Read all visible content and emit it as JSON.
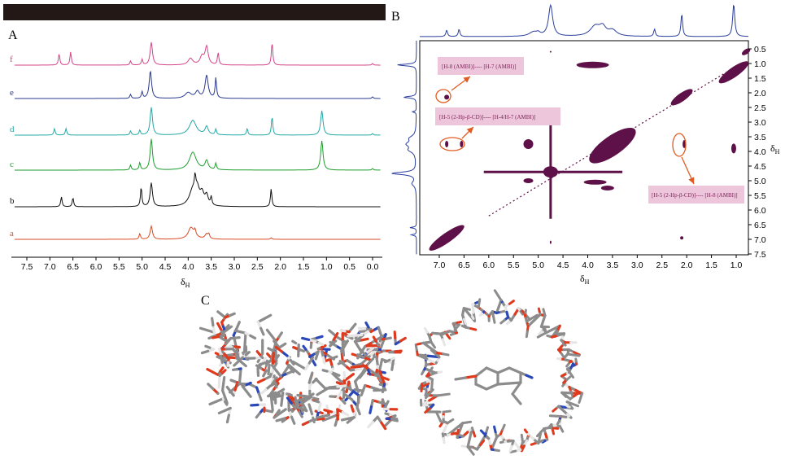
{
  "figure": {
    "panel_labels": {
      "a": "A",
      "b": "B",
      "c": "C"
    },
    "panel_a": {
      "xaxis": {
        "label": "δ",
        "label_sub": "H",
        "ticks": [
          "7.5",
          "7.0",
          "6.5",
          "6.0",
          "5.5",
          "5.0",
          "4.5",
          "4.0",
          "3.5",
          "3.0",
          "2.5",
          "2.0",
          "1.5",
          "1.0",
          "0.5",
          "0.0"
        ]
      },
      "traces": [
        {
          "label": "f",
          "color": "#d4448a"
        },
        {
          "label": "e",
          "color": "#2a3a8f"
        },
        {
          "label": "d",
          "color": "#23a9a4"
        },
        {
          "label": "c",
          "color": "#1e9e2e"
        },
        {
          "label": "b",
          "color": "#111111"
        },
        {
          "label": "a",
          "color": "#d94a24"
        }
      ]
    },
    "panel_b": {
      "xaxis": {
        "label": "δ",
        "label_sub": "H",
        "ticks": [
          "7.0",
          "6.5",
          "6.0",
          "5.5",
          "5.0",
          "4.5",
          "4.0",
          "3.5",
          "3.0",
          "2.5",
          "2.0",
          "1.5",
          "1.0"
        ]
      },
      "yaxis": {
        "label": "δ",
        "label_sub": "H",
        "ticks": [
          "0.5",
          "1.0",
          "1.5",
          "2.0",
          "2.5",
          "3.0",
          "3.5",
          "4.0",
          "4.5",
          "5.0",
          "5.5",
          "6.0",
          "6.5",
          "7.0",
          "7.5"
        ]
      },
      "annotations": [
        "[H-8 (AMBI)]---- [H-7 (AMBI)]",
        "[H-5 (2-Hp-β-CD)]---- [H-4/H-7 (AMBI)]",
        "[H-5 (2-Hp-β-CD)]---- [H-8 (AMBI)]"
      ],
      "colors": {
        "cross_peak": "#5e1148",
        "spectrum": "#2b3f9e",
        "annot_bg": "#eec6dc",
        "arrow": "#e25b22"
      }
    }
  },
  "chart_data": [
    {
      "type": "line",
      "title": "A",
      "xlabel": "δH",
      "ylabel": "",
      "xlim": [
        7.8,
        -0.2
      ],
      "x_reversed": true,
      "series": [
        {
          "name": "f",
          "peaks_ppm": [
            6.8,
            6.55,
            5.25,
            5.0,
            4.8,
            3.95,
            3.7,
            3.6,
            3.35,
            2.18,
            0.0
          ]
        },
        {
          "name": "e",
          "peaks_ppm": [
            5.25,
            5.0,
            4.82,
            4.0,
            3.8,
            3.6,
            3.4,
            0.0
          ]
        },
        {
          "name": "d",
          "peaks_ppm": [
            6.9,
            6.65,
            5.25,
            5.05,
            4.8,
            3.9,
            3.6,
            3.4,
            2.72,
            2.18,
            1.1,
            0.0
          ]
        },
        {
          "name": "c",
          "peaks_ppm": [
            5.25,
            5.05,
            4.8,
            3.9,
            3.6,
            3.4,
            1.1,
            0.0
          ]
        },
        {
          "name": "b",
          "peaks_ppm": [
            6.75,
            6.5,
            5.02,
            4.8,
            3.9,
            3.85,
            3.8,
            3.7,
            3.6,
            3.5,
            2.2
          ]
        },
        {
          "name": "a",
          "peaks_ppm": [
            5.05,
            4.8,
            3.95,
            3.9,
            3.85,
            3.6,
            3.55,
            2.2
          ]
        }
      ]
    },
    {
      "type": "scatter",
      "title": "B",
      "xlabel": "δH",
      "ylabel": "δH",
      "xlim": [
        7.3,
        0.7
      ],
      "ylim": [
        0.3,
        7.6
      ],
      "x_reversed": true,
      "y_reversed": true,
      "cross_peaks": [
        {
          "x": 6.85,
          "y": 2.15
        },
        {
          "x": 6.55,
          "y": 3.75
        },
        {
          "x": 6.85,
          "y": 3.75
        },
        {
          "x": 2.05,
          "y": 3.75
        },
        {
          "x": 2.1,
          "y": 6.95
        },
        {
          "x": 4.75,
          "y": 4.7
        }
      ]
    }
  ]
}
